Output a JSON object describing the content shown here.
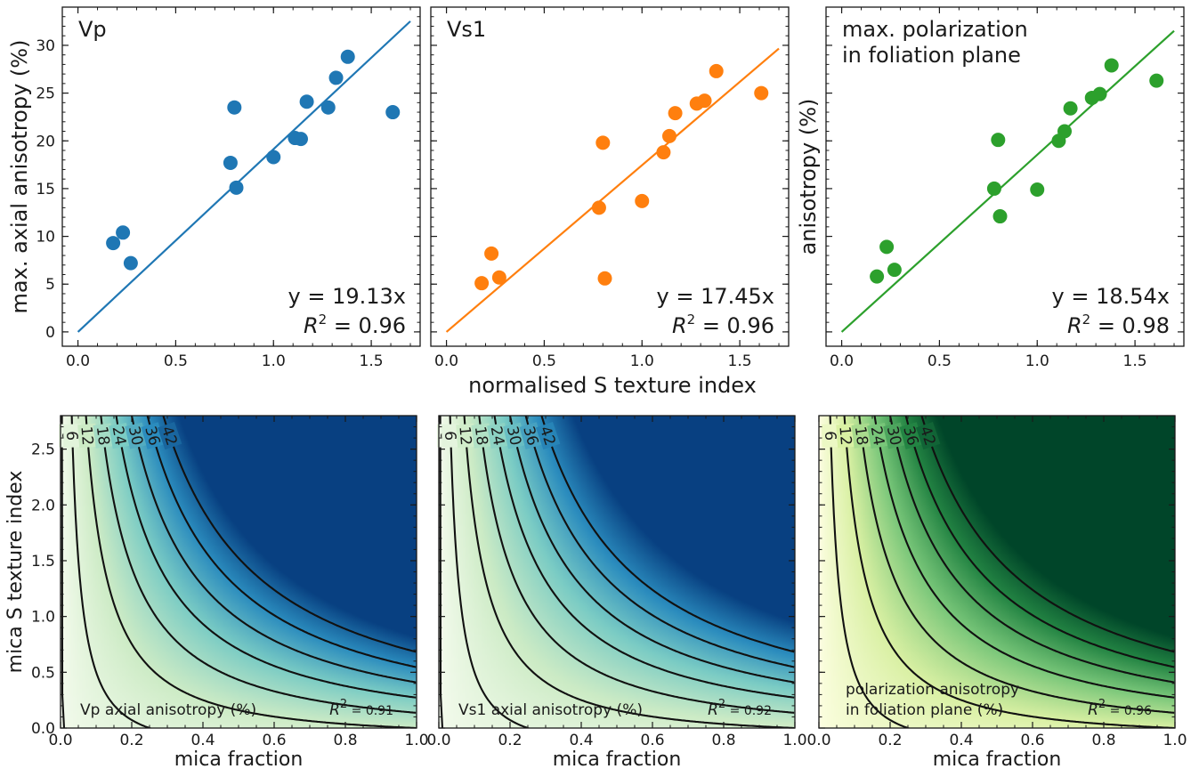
{
  "figure": {
    "top_xlabel": "normalised S texture index",
    "bottom_xlabel": "mica fraction"
  },
  "colors": {
    "vp": "#1f77b4",
    "vs1": "#ff7f0e",
    "pol": "#2ca02c",
    "frame": "#1a1a1a"
  },
  "chart_data": [
    {
      "type": "scatter",
      "panel": "top-left",
      "label": "Vp",
      "ylabel": "max. axial anisotropy (%)",
      "xlabel": "",
      "xlim": [
        -0.08,
        1.75
      ],
      "ylim": [
        -1.5,
        34
      ],
      "xticks": [
        "0.0",
        "0.5",
        "1.0",
        "1.5"
      ],
      "yticks": [
        "0",
        "5",
        "10",
        "15",
        "20",
        "25",
        "30"
      ],
      "series": [
        {
          "x": [
            0.18,
            0.23,
            0.27,
            0.78,
            0.8,
            0.81,
            1.0,
            1.11,
            1.14,
            1.17,
            1.28,
            1.32,
            1.38,
            1.61
          ],
          "y": [
            9.3,
            10.4,
            7.2,
            17.7,
            23.5,
            15.1,
            18.3,
            20.3,
            20.2,
            24.1,
            23.5,
            26.6,
            28.8,
            23.0
          ]
        }
      ],
      "fit": {
        "slope": 19.13,
        "x_range": [
          0,
          1.7
        ]
      },
      "eq_text": "y = 19.13x",
      "r2_text": "0.96"
    },
    {
      "type": "scatter",
      "panel": "top-middle",
      "label": "Vs1",
      "ylabel": "",
      "xlabel": "",
      "xlim": [
        -0.08,
        1.75
      ],
      "ylim": [
        -1.5,
        34
      ],
      "xticks": [
        "0.0",
        "0.5",
        "1.0",
        "1.5"
      ],
      "series": [
        {
          "x": [
            0.18,
            0.23,
            0.27,
            0.78,
            0.8,
            0.81,
            1.0,
            1.11,
            1.14,
            1.17,
            1.28,
            1.32,
            1.38,
            1.61
          ],
          "y": [
            5.1,
            8.2,
            5.7,
            13.0,
            19.8,
            5.6,
            13.7,
            18.8,
            20.5,
            22.9,
            23.9,
            24.2,
            27.3,
            25.0
          ]
        }
      ],
      "fit": {
        "slope": 17.45,
        "x_range": [
          0,
          1.7
        ]
      },
      "eq_text": "y = 17.45x",
      "r2_text": "0.96"
    },
    {
      "type": "scatter",
      "panel": "top-right",
      "label": "max. polarization",
      "label2": "in foliation plane",
      "ylabel": "anisotropy (%)",
      "xlabel": "",
      "xlim": [
        -0.08,
        1.75
      ],
      "ylim": [
        -1.5,
        34
      ],
      "xticks": [
        "0.0",
        "0.5",
        "1.0",
        "1.5"
      ],
      "series": [
        {
          "x": [
            0.18,
            0.23,
            0.27,
            0.78,
            0.8,
            0.81,
            1.0,
            1.11,
            1.14,
            1.17,
            1.28,
            1.32,
            1.38,
            1.61
          ],
          "y": [
            5.8,
            8.9,
            6.5,
            15.0,
            20.1,
            12.1,
            14.9,
            20.0,
            21.0,
            23.4,
            24.5,
            24.9,
            27.9,
            26.3
          ]
        }
      ],
      "fit": {
        "slope": 18.54,
        "x_range": [
          0,
          1.7
        ]
      },
      "eq_text": "y = 18.54x",
      "r2_text": "0.98"
    },
    {
      "type": "heatmap",
      "panel": "bottom-left",
      "xlabel": "mica fraction",
      "ylabel": "mica S texture index",
      "xlim": [
        0,
        1
      ],
      "ylim": [
        0,
        2.8
      ],
      "xticks": [
        "0.0",
        "0.2",
        "0.4",
        "0.6",
        "0.8",
        "1.0"
      ],
      "yticks": [
        "0.0",
        "0.5",
        "1.0",
        "1.5",
        "2.0",
        "2.5"
      ],
      "contour_levels": [
        0,
        6,
        12,
        18,
        24,
        30,
        36,
        42
      ],
      "colormap": [
        "#f7fcf0",
        "#ccebc5",
        "#7bccc4",
        "#2b8cbe",
        "#084081"
      ],
      "vmax": 48,
      "caption": "Vp axial anisotropy (%)",
      "r2_text": "0.91"
    },
    {
      "type": "heatmap",
      "panel": "bottom-middle",
      "xlabel": "mica fraction",
      "ylabel": "",
      "xlim": [
        0,
        1
      ],
      "ylim": [
        0,
        2.8
      ],
      "xticks": [
        "0.0",
        "0.2",
        "0.4",
        "0.6",
        "0.8",
        "1.0"
      ],
      "contour_levels": [
        0,
        6,
        12,
        18,
        24,
        30,
        36,
        42
      ],
      "colormap": [
        "#f7fcf0",
        "#ccebc5",
        "#7bccc4",
        "#2b8cbe",
        "#084081"
      ],
      "vmax": 54,
      "caption": "Vs1 axial anisotropy (%)",
      "r2_text": "0.92"
    },
    {
      "type": "heatmap",
      "panel": "bottom-right",
      "xlabel": "mica fraction",
      "ylabel": "",
      "xlim": [
        0,
        1
      ],
      "ylim": [
        0,
        2.8
      ],
      "xticks": [
        "0.0",
        "0.2",
        "0.4",
        "0.6",
        "0.8",
        "1.0"
      ],
      "contour_levels": [
        6,
        12,
        18,
        24,
        30,
        36,
        42
      ],
      "colormap": [
        "#ffffe5",
        "#d9f0a3",
        "#78c679",
        "#238443",
        "#004529"
      ],
      "vmax": 48,
      "caption": "polarization anisotropy",
      "caption2": "in foliation plane (%)",
      "r2_text": "0.96"
    }
  ]
}
